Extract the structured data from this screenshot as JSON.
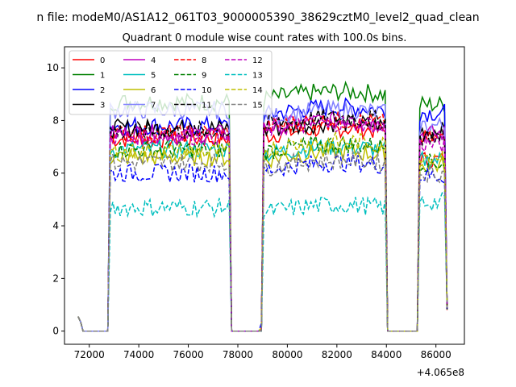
{
  "figure": {
    "suptitle": "n file: modeM0/AS1A12_061T03_9000005390_38629cztM0_level2_quad_clean",
    "offset_label": "+4.065e8"
  },
  "chart_data": {
    "type": "line",
    "title": "Quadrant 0 module wise count rates with 100.0s bins.",
    "xlabel": "",
    "ylabel": "",
    "xlim": [
      71000,
      87150
    ],
    "ylim": [
      -0.5,
      10.8
    ],
    "x_offset": 406500000,
    "x_ticks": [
      72000,
      74000,
      76000,
      78000,
      80000,
      82000,
      84000,
      86000
    ],
    "x_tick_labels": [
      "72000",
      "74000",
      "76000",
      "78000",
      "80000",
      "82000",
      "84000",
      "86000"
    ],
    "y_ticks": [
      0,
      2,
      4,
      6,
      8,
      10
    ],
    "y_tick_labels": [
      "0",
      "2",
      "4",
      "6",
      "8",
      "10"
    ],
    "grid": false,
    "legend_position": "upper-left",
    "legend_columns": 4,
    "bin_width": 100,
    "segments": [
      {
        "x_start": 71550,
        "x_end": 86450,
        "note": "gaps in this segment are zero-rate bins"
      }
    ],
    "gap_intervals_zero": [
      [
        71700,
        72750
      ],
      [
        77750,
        78850
      ],
      [
        84000,
        85250
      ]
    ],
    "series": [
      {
        "name": "0",
        "color": "#ff0000",
        "dash": "solid",
        "levels": [
          7.3,
          7.4,
          6.5
        ]
      },
      {
        "name": "1",
        "color": "#008000",
        "dash": "solid",
        "levels": [
          8.7,
          8.8,
          8.6
        ]
      },
      {
        "name": "2",
        "color": "#0000ff",
        "dash": "solid",
        "levels": [
          7.8,
          8.2,
          8.3
        ]
      },
      {
        "name": "3",
        "color": "#000000",
        "dash": "solid",
        "levels": [
          7.7,
          7.6,
          7.6
        ]
      },
      {
        "name": "4",
        "color": "#bf00bf",
        "dash": "solid",
        "levels": [
          7.5,
          7.7,
          7.5
        ]
      },
      {
        "name": "5",
        "color": "#00bfbf",
        "dash": "solid",
        "levels": [
          6.9,
          6.7,
          6.5
        ]
      },
      {
        "name": "6",
        "color": "#bfbf00",
        "dash": "solid",
        "levels": [
          6.6,
          6.5,
          6.3
        ]
      },
      {
        "name": "7",
        "color": "#8080ff",
        "dash": "solid",
        "levels": [
          8.4,
          8.1,
          7.8
        ]
      },
      {
        "name": "8",
        "color": "#ff0000",
        "dash": "dashed",
        "levels": [
          7.5,
          7.7,
          7.3
        ]
      },
      {
        "name": "9",
        "color": "#008000",
        "dash": "dashed",
        "levels": [
          6.9,
          6.8,
          6.4
        ]
      },
      {
        "name": "10",
        "color": "#0000ff",
        "dash": "dashed",
        "levels": [
          6.0,
          6.1,
          5.9
        ]
      },
      {
        "name": "11",
        "color": "#000000",
        "dash": "dashed",
        "levels": [
          7.6,
          7.8,
          7.4
        ]
      },
      {
        "name": "12",
        "color": "#bf00bf",
        "dash": "dashed",
        "levels": [
          7.4,
          7.6,
          7.1
        ]
      },
      {
        "name": "13",
        "color": "#00bfbf",
        "dash": "dashed",
        "levels": [
          4.7,
          4.5,
          4.9
        ]
      },
      {
        "name": "14",
        "color": "#bfbf00",
        "dash": "dashed",
        "levels": [
          6.8,
          6.9,
          6.7
        ]
      },
      {
        "name": "15",
        "color": "#808080",
        "dash": "dashed",
        "levels": [
          6.4,
          6.2,
          6.0
        ]
      }
    ]
  }
}
